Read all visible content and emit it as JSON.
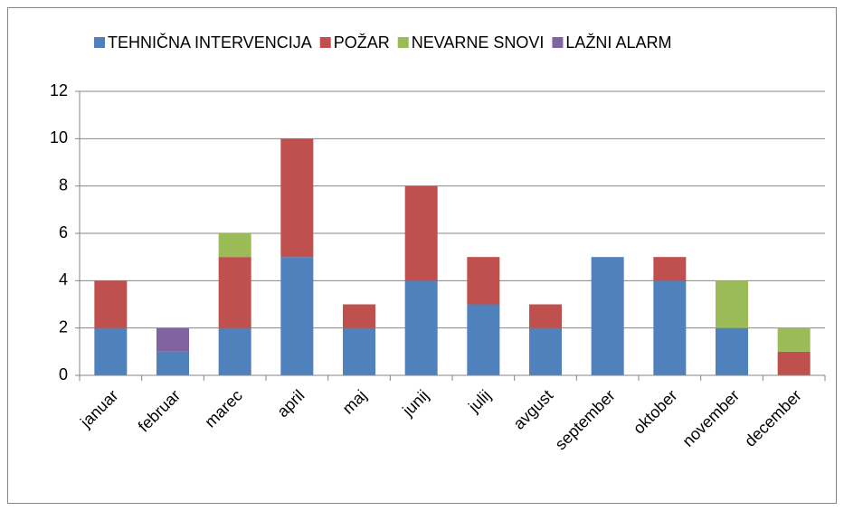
{
  "chart_data": {
    "type": "bar",
    "stacked": true,
    "categories": [
      "januar",
      "februar",
      "marec",
      "april",
      "maj",
      "junij",
      "julij",
      "avgust",
      "september",
      "oktober",
      "november",
      "december"
    ],
    "series": [
      {
        "name": "TEHNIČNA INTERVENCIJA",
        "color": "#4f81bd",
        "values": [
          2,
          1,
          2,
          5,
          2,
          4,
          3,
          2,
          5,
          4,
          2,
          0
        ]
      },
      {
        "name": "POŽAR",
        "color": "#c0504d",
        "values": [
          2,
          0,
          3,
          5,
          1,
          4,
          2,
          1,
          0,
          1,
          0,
          1
        ]
      },
      {
        "name": "NEVARNE SNOVI",
        "color": "#9bbb59",
        "values": [
          0,
          0,
          1,
          0,
          0,
          0,
          0,
          0,
          0,
          0,
          2,
          1
        ]
      },
      {
        "name": "LAŽNI ALARM",
        "color": "#8064a2",
        "values": [
          0,
          1,
          0,
          0,
          0,
          0,
          0,
          0,
          0,
          0,
          0,
          0
        ]
      }
    ],
    "ylim": [
      0,
      12
    ],
    "yticks": [
      0,
      2,
      4,
      6,
      8,
      10,
      12
    ],
    "grid": true,
    "legend": "top"
  }
}
